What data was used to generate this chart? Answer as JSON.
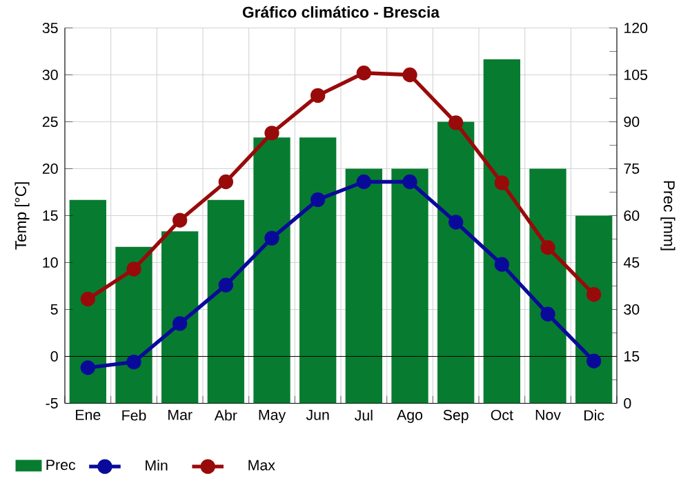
{
  "chart_data": {
    "type": "bar",
    "title": "Gráfico climático - Brescia",
    "ylabel": "Temp [°C]",
    "y2label": "Prec [mm]",
    "categories": [
      "Ene",
      "Feb",
      "Mar",
      "Abr",
      "May",
      "Jun",
      "Jul",
      "Ago",
      "Sep",
      "Oct",
      "Nov",
      "Dic"
    ],
    "series": [
      {
        "name": "Prec",
        "axis": "y2",
        "color": "#077c30",
        "values": [
          65,
          50,
          55,
          65,
          85,
          85,
          75,
          75,
          90,
          110,
          75,
          60
        ]
      },
      {
        "name": "Min",
        "type": "line",
        "color": "#0a0a9a",
        "values": [
          -1.2,
          -0.6,
          3.5,
          7.6,
          12.6,
          16.7,
          18.6,
          18.6,
          14.3,
          9.8,
          4.5,
          -0.5
        ]
      },
      {
        "name": "Max",
        "type": "line",
        "color": "#990a0a",
        "values": [
          6.1,
          9.3,
          14.5,
          18.6,
          23.8,
          27.8,
          30.2,
          30.0,
          24.9,
          18.5,
          11.6,
          6.6
        ]
      }
    ],
    "ylim": [
      -5,
      35
    ],
    "yticks": [
      -5,
      0,
      5,
      10,
      15,
      20,
      25,
      30,
      35
    ],
    "y2lim": [
      0,
      120
    ],
    "y2ticks": [
      0,
      {
        "value": 7.5,
        "label": null
      },
      15,
      {
        "value": 22.5,
        "label": null
      },
      30,
      {
        "value": 37.5,
        "label": null
      },
      45,
      {
        "value": 52.5,
        "label": null
      },
      60,
      {
        "value": 67.5,
        "label": null
      },
      75,
      {
        "value": 82.5,
        "label": null
      },
      90,
      {
        "value": 97.5,
        "label": null
      },
      105,
      {
        "value": 112.5,
        "label": null
      },
      120
    ],
    "ref_lines": [
      {
        "axis": "y",
        "value": 0,
        "color": "#000000"
      }
    ],
    "grid": true,
    "legend": "bottom left",
    "marker": "circle",
    "line_style": "solid"
  }
}
